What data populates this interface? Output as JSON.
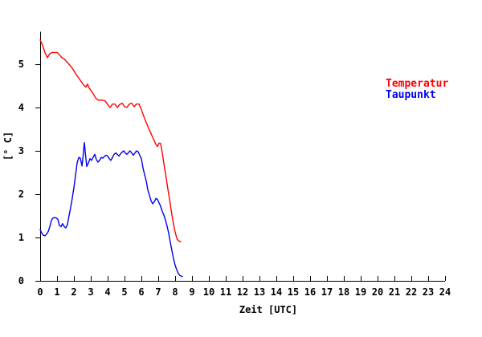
{
  "chart_data": {
    "type": "line",
    "title": "",
    "xlabel": "Zeit [UTC]",
    "ylabel": "[° C]",
    "xlim": [
      0,
      24
    ],
    "ylim": [
      0,
      5.75
    ],
    "xticks": [
      0,
      1,
      2,
      3,
      4,
      5,
      6,
      7,
      8,
      9,
      10,
      11,
      12,
      13,
      14,
      15,
      16,
      17,
      18,
      19,
      20,
      21,
      22,
      23,
      24
    ],
    "yticks": [
      0,
      1,
      2,
      3,
      4,
      5
    ],
    "grid": false,
    "legend_position": "upper-right-inside",
    "axis_color": "#000000",
    "series": [
      {
        "name": "Temperatur",
        "color": "#ff0000",
        "points": [
          [
            0.0,
            5.56
          ],
          [
            0.1,
            5.48
          ],
          [
            0.19,
            5.38
          ],
          [
            0.29,
            5.26
          ],
          [
            0.43,
            5.15
          ],
          [
            0.57,
            5.24
          ],
          [
            0.71,
            5.27
          ],
          [
            0.86,
            5.27
          ],
          [
            1.0,
            5.27
          ],
          [
            1.14,
            5.22
          ],
          [
            1.29,
            5.15
          ],
          [
            1.43,
            5.12
          ],
          [
            1.57,
            5.06
          ],
          [
            1.71,
            5.0
          ],
          [
            1.86,
            4.93
          ],
          [
            2.0,
            4.85
          ],
          [
            2.14,
            4.76
          ],
          [
            2.29,
            4.68
          ],
          [
            2.43,
            4.6
          ],
          [
            2.57,
            4.52
          ],
          [
            2.71,
            4.47
          ],
          [
            2.81,
            4.54
          ],
          [
            2.9,
            4.45
          ],
          [
            3.0,
            4.4
          ],
          [
            3.14,
            4.32
          ],
          [
            3.29,
            4.22
          ],
          [
            3.43,
            4.17
          ],
          [
            3.57,
            4.17
          ],
          [
            3.71,
            4.17
          ],
          [
            3.86,
            4.15
          ],
          [
            4.0,
            4.07
          ],
          [
            4.14,
            4.0
          ],
          [
            4.29,
            4.08
          ],
          [
            4.43,
            4.08
          ],
          [
            4.57,
            4.0
          ],
          [
            4.71,
            4.07
          ],
          [
            4.86,
            4.1
          ],
          [
            5.0,
            4.02
          ],
          [
            5.14,
            4.0
          ],
          [
            5.29,
            4.08
          ],
          [
            5.43,
            4.1
          ],
          [
            5.57,
            4.02
          ],
          [
            5.71,
            4.08
          ],
          [
            5.86,
            4.08
          ],
          [
            6.0,
            3.95
          ],
          [
            6.14,
            3.8
          ],
          [
            6.29,
            3.65
          ],
          [
            6.43,
            3.52
          ],
          [
            6.57,
            3.4
          ],
          [
            6.71,
            3.28
          ],
          [
            6.86,
            3.15
          ],
          [
            6.95,
            3.1
          ],
          [
            7.05,
            3.18
          ],
          [
            7.14,
            3.17
          ],
          [
            7.24,
            2.95
          ],
          [
            7.33,
            2.72
          ],
          [
            7.43,
            2.48
          ],
          [
            7.52,
            2.25
          ],
          [
            7.62,
            2.0
          ],
          [
            7.71,
            1.78
          ],
          [
            7.81,
            1.52
          ],
          [
            7.9,
            1.32
          ],
          [
            8.0,
            1.13
          ],
          [
            8.1,
            0.98
          ],
          [
            8.19,
            0.93
          ],
          [
            8.33,
            0.9
          ]
        ]
      },
      {
        "name": "Taupunkt",
        "color": "#0000ee",
        "points": [
          [
            0.0,
            1.18
          ],
          [
            0.1,
            1.1
          ],
          [
            0.19,
            1.05
          ],
          [
            0.29,
            1.04
          ],
          [
            0.38,
            1.08
          ],
          [
            0.48,
            1.14
          ],
          [
            0.57,
            1.25
          ],
          [
            0.67,
            1.4
          ],
          [
            0.76,
            1.45
          ],
          [
            0.86,
            1.46
          ],
          [
            0.95,
            1.45
          ],
          [
            1.05,
            1.42
          ],
          [
            1.14,
            1.28
          ],
          [
            1.24,
            1.25
          ],
          [
            1.33,
            1.32
          ],
          [
            1.43,
            1.25
          ],
          [
            1.52,
            1.22
          ],
          [
            1.62,
            1.3
          ],
          [
            1.71,
            1.5
          ],
          [
            1.81,
            1.7
          ],
          [
            1.9,
            1.9
          ],
          [
            2.0,
            2.15
          ],
          [
            2.1,
            2.45
          ],
          [
            2.19,
            2.72
          ],
          [
            2.29,
            2.85
          ],
          [
            2.38,
            2.83
          ],
          [
            2.48,
            2.65
          ],
          [
            2.55,
            2.9
          ],
          [
            2.62,
            3.19
          ],
          [
            2.69,
            2.9
          ],
          [
            2.76,
            2.64
          ],
          [
            2.86,
            2.72
          ],
          [
            2.95,
            2.82
          ],
          [
            3.05,
            2.78
          ],
          [
            3.14,
            2.85
          ],
          [
            3.24,
            2.92
          ],
          [
            3.33,
            2.8
          ],
          [
            3.43,
            2.74
          ],
          [
            3.52,
            2.78
          ],
          [
            3.62,
            2.85
          ],
          [
            3.71,
            2.83
          ],
          [
            3.81,
            2.87
          ],
          [
            3.9,
            2.9
          ],
          [
            4.0,
            2.88
          ],
          [
            4.1,
            2.82
          ],
          [
            4.19,
            2.78
          ],
          [
            4.29,
            2.85
          ],
          [
            4.38,
            2.92
          ],
          [
            4.48,
            2.95
          ],
          [
            4.57,
            2.92
          ],
          [
            4.67,
            2.88
          ],
          [
            4.76,
            2.93
          ],
          [
            4.86,
            2.97
          ],
          [
            4.95,
            3.0
          ],
          [
            5.05,
            2.95
          ],
          [
            5.14,
            2.92
          ],
          [
            5.24,
            2.96
          ],
          [
            5.33,
            3.0
          ],
          [
            5.43,
            2.95
          ],
          [
            5.52,
            2.9
          ],
          [
            5.62,
            2.95
          ],
          [
            5.71,
            3.0
          ],
          [
            5.81,
            2.98
          ],
          [
            5.9,
            2.9
          ],
          [
            6.0,
            2.82
          ],
          [
            6.1,
            2.6
          ],
          [
            6.19,
            2.45
          ],
          [
            6.29,
            2.3
          ],
          [
            6.38,
            2.1
          ],
          [
            6.48,
            1.97
          ],
          [
            6.57,
            1.85
          ],
          [
            6.67,
            1.78
          ],
          [
            6.76,
            1.82
          ],
          [
            6.86,
            1.9
          ],
          [
            6.95,
            1.88
          ],
          [
            7.05,
            1.8
          ],
          [
            7.14,
            1.72
          ],
          [
            7.24,
            1.6
          ],
          [
            7.33,
            1.52
          ],
          [
            7.43,
            1.4
          ],
          [
            7.52,
            1.27
          ],
          [
            7.62,
            1.1
          ],
          [
            7.71,
            0.9
          ],
          [
            7.81,
            0.7
          ],
          [
            7.9,
            0.52
          ],
          [
            8.0,
            0.36
          ],
          [
            8.1,
            0.25
          ],
          [
            8.19,
            0.17
          ],
          [
            8.29,
            0.12
          ],
          [
            8.43,
            0.1
          ]
        ]
      }
    ]
  }
}
